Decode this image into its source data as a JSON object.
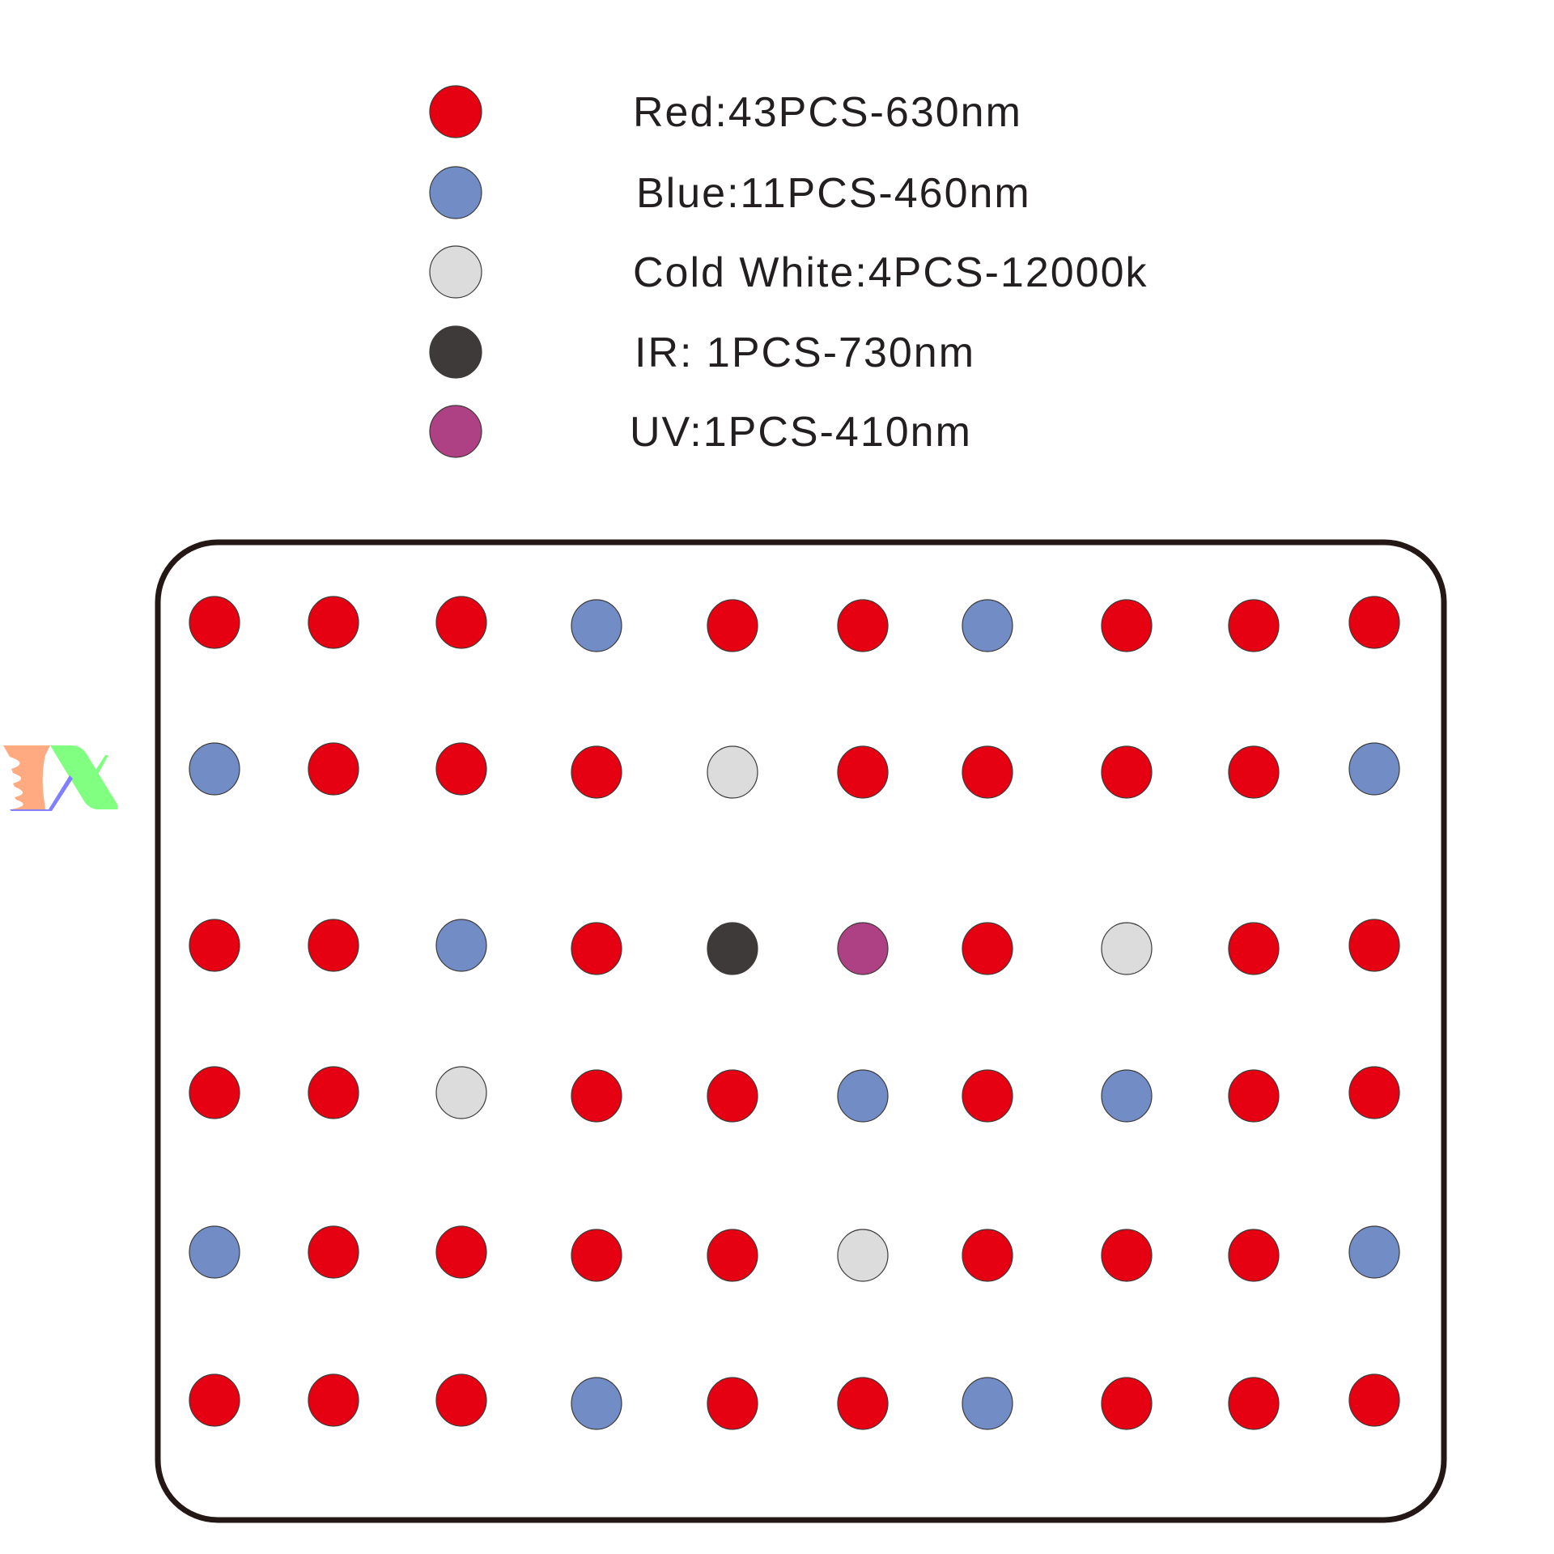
{
  "legend": [
    {
      "key": "R",
      "label": "Red:43PCS-630nm",
      "color": "#e50012"
    },
    {
      "key": "B",
      "label": "Blue:11PCS-460nm",
      "color": "#728dc6"
    },
    {
      "key": "W",
      "label": "Cold White:4PCS-12000k",
      "color": "#dcdcdc"
    },
    {
      "key": "I",
      "label": "IR: 1PCS-730nm",
      "color": "#3e3a39"
    },
    {
      "key": "U",
      "label": "UV:1PCS-410nm",
      "color": "#ad4183"
    }
  ],
  "board": {
    "outline_color": "#231815",
    "layout": [
      [
        "R",
        "R",
        "R",
        "B",
        "R",
        "R",
        "B",
        "R",
        "R",
        "R"
      ],
      [
        "B",
        "R",
        "R",
        "R",
        "W",
        "R",
        "R",
        "R",
        "R",
        "B"
      ],
      [
        "R",
        "R",
        "B",
        "R",
        "I",
        "U",
        "R",
        "W",
        "R",
        "R"
      ],
      [
        "R",
        "R",
        "W",
        "R",
        "R",
        "B",
        "R",
        "B",
        "R",
        "R"
      ],
      [
        "B",
        "R",
        "R",
        "R",
        "R",
        "W",
        "R",
        "R",
        "R",
        "B"
      ],
      [
        "R",
        "R",
        "R",
        "B",
        "R",
        "R",
        "B",
        "R",
        "R",
        "R"
      ]
    ]
  },
  "logo": {
    "colors": [
      "#ffaa80",
      "#80ff80",
      "#8080ff"
    ]
  }
}
